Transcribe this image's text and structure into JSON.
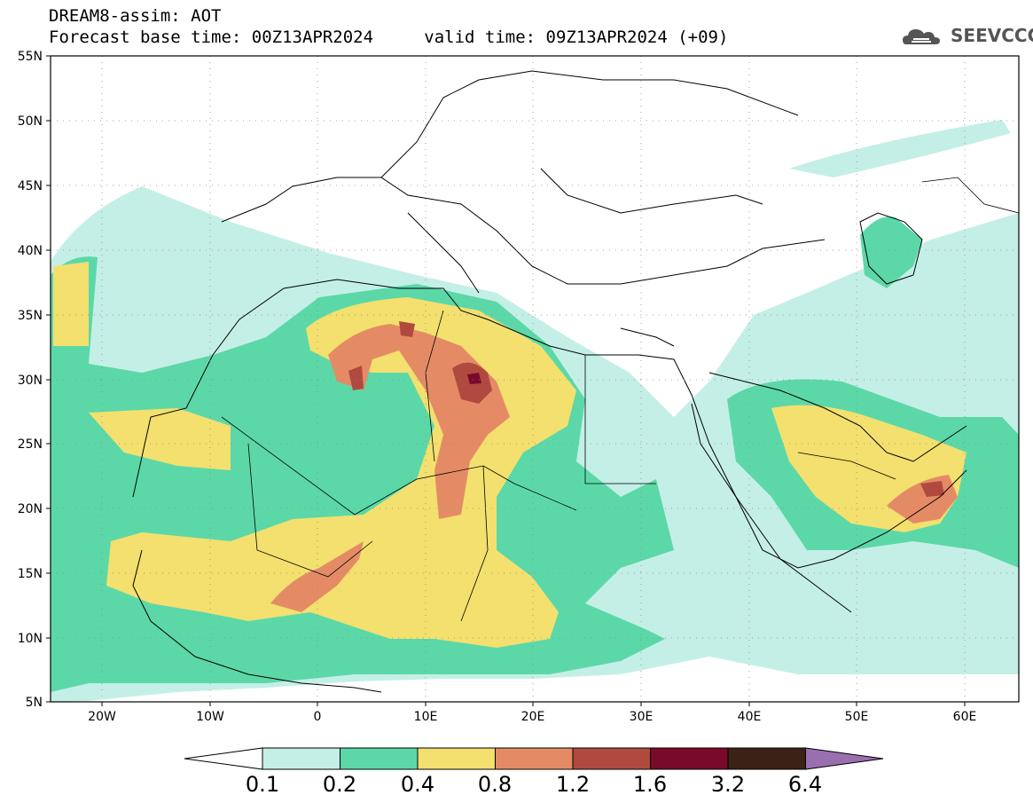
{
  "header": {
    "line1": "DREAM8-assim: AOT",
    "base_time": "Forecast base time: 00Z13APR2024",
    "valid_time": "valid time: 09Z13APR2024 (+09)"
  },
  "logo": {
    "text": "SEEVCCC",
    "icon": "cloud-icon"
  },
  "map": {
    "lat_labels": [
      "55N",
      "50N",
      "45N",
      "40N",
      "35N",
      "30N",
      "25N",
      "20N",
      "15N",
      "10N",
      "5N"
    ],
    "lon_labels": [
      "20W",
      "10W",
      "0",
      "10E",
      "20E",
      "30E",
      "40E",
      "50E",
      "60E"
    ]
  },
  "colorbar": {
    "labels": [
      "0.1",
      "0.2",
      "0.4",
      "0.8",
      "1.2",
      "1.6",
      "3.2",
      "6.4"
    ],
    "colors": [
      "#ffffff",
      "#c4efe6",
      "#5cd8a8",
      "#f3e06e",
      "#e48b66",
      "#b04a3f",
      "#7a0a2a",
      "#3b2216",
      "#9a6fb0"
    ]
  }
}
